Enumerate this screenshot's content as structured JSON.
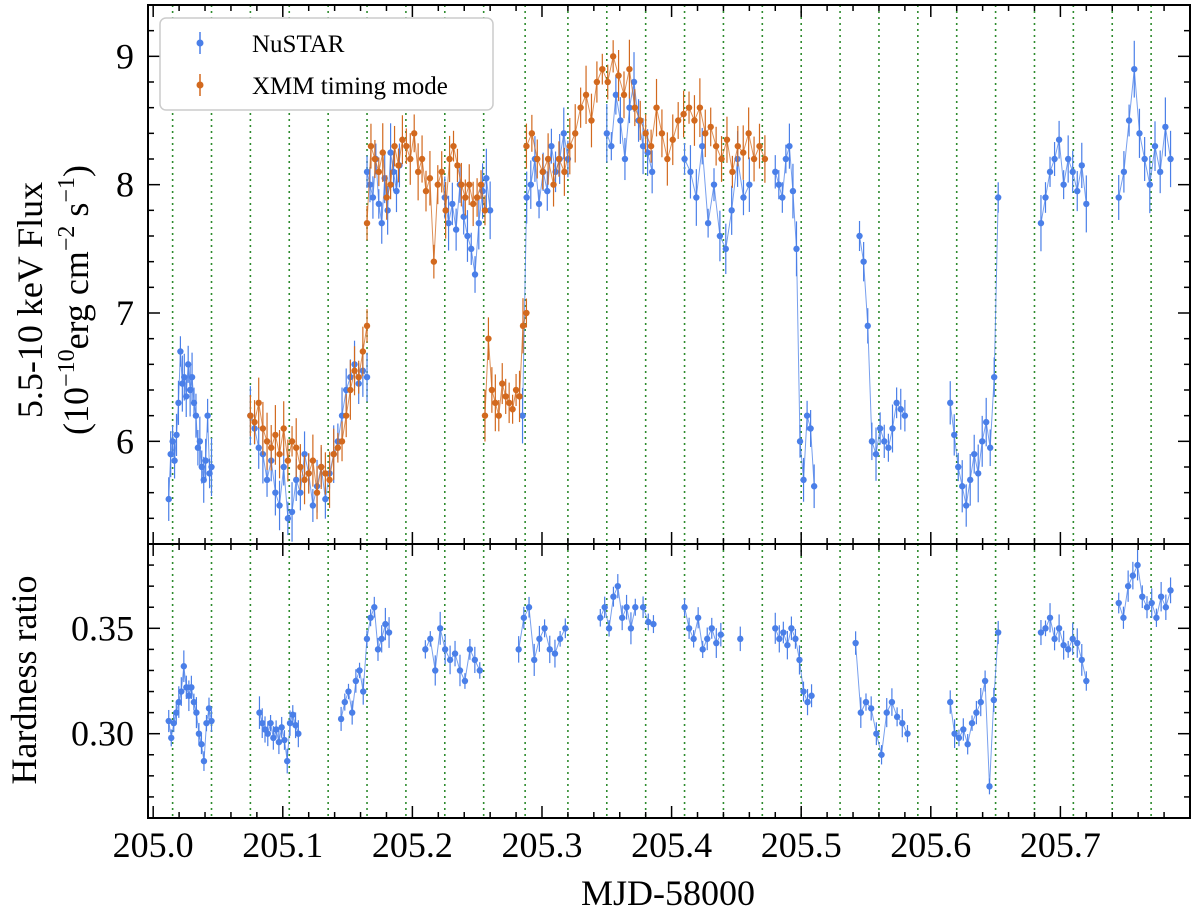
{
  "chart_data": [
    {
      "type": "scatter",
      "panel": "top",
      "ylabel_line1": "5.5-10 keV Flux",
      "ylabel_line2_prefix": "(10",
      "ylabel_line2_exp1": "−10",
      "ylabel_line2_mid": "erg cm",
      "ylabel_line2_exp2": "−2",
      "ylabel_line2_mid2": " s",
      "ylabel_line2_exp3": "−1",
      "ylabel_line2_suffix": ")",
      "ylim": [
        5.2,
        9.4
      ],
      "yticks": [
        6,
        7,
        8,
        9
      ],
      "ytick_labels": [
        "6",
        "7",
        "8",
        "9"
      ],
      "xlim": [
        204.996,
        205.8
      ],
      "legend": {
        "position": "upper-left",
        "entries": [
          {
            "label": "NuSTAR",
            "color": "#4a7fe8"
          },
          {
            "label": "XMM timing mode",
            "color": "#d2691e"
          }
        ]
      },
      "series": [
        {
          "name": "NuSTAR",
          "color": "#4a7fe8",
          "segments": [
            {
              "x0": 205.012,
              "x1": 205.045,
              "values": [
                5.55,
                5.9,
                6.0,
                5.85,
                6.05,
                6.3,
                6.7,
                6.45,
                6.5,
                6.35,
                6.6,
                6.4,
                6.5,
                6.3,
                6.2,
                5.95,
                6.0,
                5.8,
                5.7,
                5.85,
                6.2,
                5.75,
                5.8
              ]
            },
            {
              "x0": 205.075,
              "x1": 205.165,
              "values": [
                6.2,
                6.1,
                5.95,
                5.9,
                5.7,
                5.85,
                5.6,
                5.5,
                5.8,
                5.4,
                5.45,
                5.7,
                5.6,
                5.9,
                5.75,
                5.5,
                5.65,
                5.8,
                5.55,
                5.75,
                5.9,
                6.0,
                6.2,
                6.4,
                6.5,
                6.6,
                6.45,
                6.55,
                6.5
              ]
            },
            {
              "x0": 205.165,
              "x1": 205.19,
              "values": [
                8.1,
                8.0,
                7.9,
                8.2,
                7.85,
                7.7,
                8.05,
                7.8,
                8.25,
                8.1,
                7.95,
                8.15
              ]
            },
            {
              "x0": 205.225,
              "x1": 205.26,
              "values": [
                7.9,
                7.7,
                7.85,
                7.65,
                8.0,
                7.75,
                7.6,
                7.5,
                7.3,
                7.7,
                7.95,
                8.05,
                7.8
              ]
            },
            {
              "x0": 205.285,
              "x1": 205.32,
              "values": [
                6.2,
                7.9,
                8.0,
                8.2,
                7.85,
                8.1,
                7.95,
                8.3,
                8.1,
                8.2,
                8.4,
                8.2
              ]
            },
            {
              "x0": 205.35,
              "x1": 205.385,
              "values": [
                8.4,
                8.3,
                8.7,
                8.5,
                8.2,
                8.6,
                8.8,
                8.5,
                8.3,
                8.25,
                8.1
              ]
            },
            {
              "x0": 205.41,
              "x1": 205.46,
              "values": [
                8.2,
                8.1,
                7.9,
                8.3,
                7.7,
                8.0,
                7.6,
                7.5,
                7.8,
                8.2,
                7.9,
                8.0
              ]
            },
            {
              "x0": 205.48,
              "x1": 205.51,
              "values": [
                8.1,
                8.0,
                7.9,
                8.2,
                8.3,
                7.95,
                7.5,
                6.0,
                5.7,
                6.2,
                6.1,
                5.65
              ]
            },
            {
              "x0": 205.545,
              "x1": 205.58,
              "values": [
                7.6,
                7.4,
                6.9,
                6.0,
                5.9,
                6.1,
                6.0,
                5.95,
                6.1,
                6.3,
                6.25,
                6.2
              ]
            },
            {
              "x0": 205.615,
              "x1": 205.652,
              "values": [
                6.3,
                6.05,
                5.8,
                5.65,
                5.5,
                5.7,
                5.9,
                5.75,
                6.0,
                6.15,
                5.95,
                6.5,
                7.9
              ]
            },
            {
              "x0": 205.685,
              "x1": 205.72,
              "values": [
                7.7,
                7.9,
                8.1,
                8.2,
                8.35,
                8.0,
                8.2,
                8.1,
                7.95,
                8.15,
                7.85
              ]
            },
            {
              "x0": 205.745,
              "x1": 205.785,
              "values": [
                7.9,
                8.1,
                8.5,
                8.9,
                8.4,
                8.2,
                8.0,
                8.3,
                8.1,
                8.45,
                8.2
              ]
            }
          ]
        },
        {
          "name": "XMM timing mode",
          "color": "#d2691e",
          "segments": [
            {
              "x0": 205.075,
              "x1": 205.165,
              "values": [
                6.2,
                6.15,
                6.3,
                6.1,
                6.0,
                5.95,
                6.05,
                5.9,
                6.1,
                5.85,
                6.0,
                5.95,
                5.8,
                5.7,
                5.75,
                5.85,
                5.6,
                5.8,
                5.75,
                5.7,
                5.9,
                5.95,
                6.0,
                6.2,
                6.4,
                6.55,
                6.5,
                6.7,
                6.9
              ]
            },
            {
              "x0": 205.165,
              "x1": 205.256,
              "values": [
                7.7,
                8.3,
                8.2,
                8.1,
                8.25,
                7.9,
                8.0,
                8.3,
                8.15,
                8.35,
                8.3,
                8.2,
                8.4,
                8.1,
                8.2,
                7.95,
                8.05,
                7.4,
                8.0,
                8.1,
                7.8,
                8.2,
                8.3,
                8.15,
                8.0,
                7.9,
                8.0,
                7.85,
                7.9,
                8.0,
                7.8
              ]
            },
            {
              "x0": 205.256,
              "x1": 205.288,
              "values": [
                6.2,
                6.8,
                6.4,
                6.3,
                6.2,
                6.45,
                6.35,
                6.3,
                6.25,
                6.4,
                6.35,
                6.9,
                7.0
              ]
            },
            {
              "x0": 205.288,
              "x1": 205.472,
              "values": [
                8.3,
                8.4,
                8.2,
                8.1,
                8.2,
                8.0,
                8.2,
                8.1,
                8.3,
                8.4,
                8.6,
                8.7,
                8.5,
                8.8,
                8.9,
                8.8,
                9.0,
                8.85,
                8.7,
                8.9,
                8.6,
                8.5,
                8.4,
                8.3,
                8.6,
                8.4,
                8.2,
                8.35,
                8.5,
                8.55,
                8.6,
                8.5,
                8.6,
                8.4,
                8.45,
                8.3,
                8.2,
                8.35,
                8.1,
                8.3,
                8.25,
                8.4,
                8.2,
                8.3,
                8.2
              ]
            }
          ]
        }
      ]
    },
    {
      "type": "scatter",
      "panel": "bottom",
      "ylabel": "Hardness ratio",
      "xlabel": "MJD-58000",
      "ylim": [
        0.26,
        0.39
      ],
      "yticks": [
        0.3,
        0.35
      ],
      "ytick_labels": [
        "0.30",
        "0.35"
      ],
      "xlim": [
        204.996,
        205.8
      ],
      "xticks": [
        205.0,
        205.1,
        205.2,
        205.3,
        205.4,
        205.5,
        205.6,
        205.7
      ],
      "xtick_labels": [
        "205.0",
        "205.1",
        "205.2",
        "205.3",
        "205.4",
        "205.5",
        "205.6",
        "205.7"
      ],
      "series": [
        {
          "name": "NuSTAR",
          "color": "#4a7fe8",
          "segments": [
            {
              "x0": 205.012,
              "x1": 205.045,
              "values": [
                0.306,
                0.298,
                0.305,
                0.31,
                0.315,
                0.32,
                0.332,
                0.322,
                0.318,
                0.322,
                0.315,
                0.31,
                0.3,
                0.295,
                0.287,
                0.305,
                0.312,
                0.306
              ]
            },
            {
              "x0": 205.082,
              "x1": 205.112,
              "values": [
                0.31,
                0.305,
                0.302,
                0.3,
                0.305,
                0.298,
                0.302,
                0.296,
                0.303,
                0.297,
                0.287,
                0.305,
                0.309,
                0.304,
                0.3
              ]
            },
            {
              "x0": 205.145,
              "x1": 205.182,
              "values": [
                0.307,
                0.315,
                0.32,
                0.31,
                0.325,
                0.33,
                0.32,
                0.345,
                0.355,
                0.36,
                0.34,
                0.345,
                0.352,
                0.348
              ]
            },
            {
              "x0": 205.21,
              "x1": 205.252,
              "values": [
                0.34,
                0.345,
                0.33,
                0.35,
                0.34,
                0.335,
                0.338,
                0.33,
                0.325,
                0.34,
                0.335,
                0.33
              ]
            },
            {
              "x0": 205.282,
              "x1": 205.318,
              "values": [
                0.34,
                0.355,
                0.36,
                0.335,
                0.345,
                0.35,
                0.34,
                0.338,
                0.345,
                0.35
              ]
            },
            {
              "x0": 205.345,
              "x1": 205.372,
              "values": [
                0.355,
                0.36,
                0.35,
                0.365,
                0.37,
                0.355,
                0.36,
                0.35,
                0.36
              ]
            },
            {
              "x0": 205.378,
              "x1": 205.386,
              "values": [
                0.36,
                0.353,
                0.352
              ]
            },
            {
              "x0": 205.41,
              "x1": 205.438,
              "values": [
                0.36,
                0.35,
                0.345,
                0.355,
                0.34,
                0.345,
                0.35,
                0.343,
                0.347
              ]
            },
            {
              "x0": 205.453,
              "x1": 205.453,
              "values": [
                0.345
              ]
            },
            {
              "x0": 205.48,
              "x1": 205.508,
              "values": [
                0.35,
                0.345,
                0.348,
                0.342,
                0.35,
                0.345,
                0.335,
                0.32,
                0.315,
                0.318
              ]
            },
            {
              "x0": 205.542,
              "x1": 205.582,
              "values": [
                0.343,
                0.31,
                0.315,
                0.312,
                0.3,
                0.29,
                0.31,
                0.315,
                0.308,
                0.305,
                0.3
              ]
            },
            {
              "x0": 205.615,
              "x1": 205.652,
              "values": [
                0.315,
                0.3,
                0.298,
                0.302,
                0.295,
                0.305,
                0.31,
                0.315,
                0.325,
                0.275,
                0.316,
                0.348
              ]
            },
            {
              "x0": 205.685,
              "x1": 205.72,
              "values": [
                0.348,
                0.35,
                0.355,
                0.345,
                0.35,
                0.342,
                0.34,
                0.345,
                0.343,
                0.335,
                0.325
              ]
            },
            {
              "x0": 205.745,
              "x1": 205.785,
              "values": [
                0.362,
                0.355,
                0.37,
                0.375,
                0.38,
                0.365,
                0.36,
                0.362,
                0.355,
                0.365,
                0.36,
                0.368
              ]
            }
          ]
        }
      ]
    }
  ],
  "vertical_lines": {
    "color": "#2e8b2e",
    "x": [
      205.015,
      205.045,
      205.075,
      205.105,
      205.135,
      205.165,
      205.195,
      205.225,
      205.255,
      205.287,
      205.32,
      205.35,
      205.38,
      205.41,
      205.44,
      205.47,
      205.5,
      205.53,
      205.56,
      205.59,
      205.62,
      205.65,
      205.68,
      205.71,
      205.74,
      205.77,
      205.8
    ]
  }
}
